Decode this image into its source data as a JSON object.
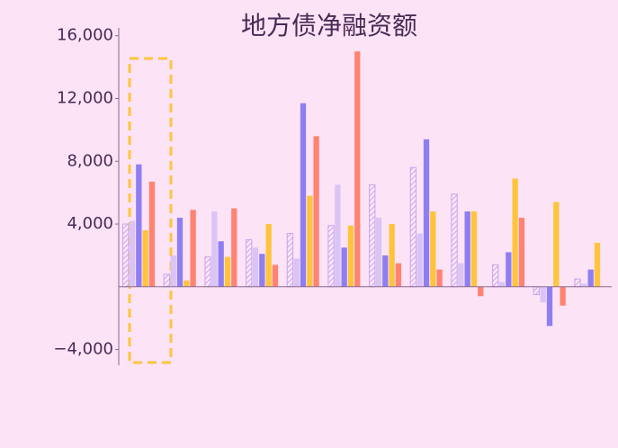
{
  "chart_data": {
    "type": "bar",
    "title": "地方债净融资额",
    "categories": [
      null,
      null,
      null,
      null,
      null,
      null,
      null,
      null,
      null,
      null,
      null,
      null
    ],
    "series": [
      {
        "color": "#c9a6e8",
        "hatch": true,
        "values": [
          4000,
          800,
          1900,
          3000,
          3400,
          3900,
          6500,
          7600,
          5900,
          1400,
          -500,
          500
        ]
      },
      {
        "color": "#d9c4f5",
        "values": [
          4200,
          2000,
          4800,
          2500,
          1800,
          6500,
          4400,
          3400,
          1500,
          300,
          -1000,
          200
        ]
      },
      {
        "color": "#8f7ef2",
        "values": [
          7800,
          4400,
          2900,
          2100,
          11700,
          2500,
          2000,
          9400,
          4800,
          2200,
          -2500,
          1100
        ]
      },
      {
        "color": "#ffc43d",
        "values": [
          3600,
          400,
          1900,
          4000,
          5800,
          3900,
          4000,
          4800,
          4800,
          6900,
          5400,
          2800
        ]
      },
      {
        "color": "#ff8370",
        "values": [
          6700,
          4900,
          5000,
          1400,
          9600,
          15000,
          1500,
          1100,
          -600,
          4400,
          -1200,
          0
        ]
      }
    ],
    "ylim": [
      -5000,
      16500
    ],
    "yticks": [
      {
        "value": -4000,
        "label": "−4,000"
      },
      {
        "value": 4000,
        "label": "4,000"
      },
      {
        "value": 8000,
        "label": "8,000"
      },
      {
        "value": 12000,
        "label": "12,000"
      },
      {
        "value": 16000,
        "label": "16,000"
      }
    ]
  }
}
